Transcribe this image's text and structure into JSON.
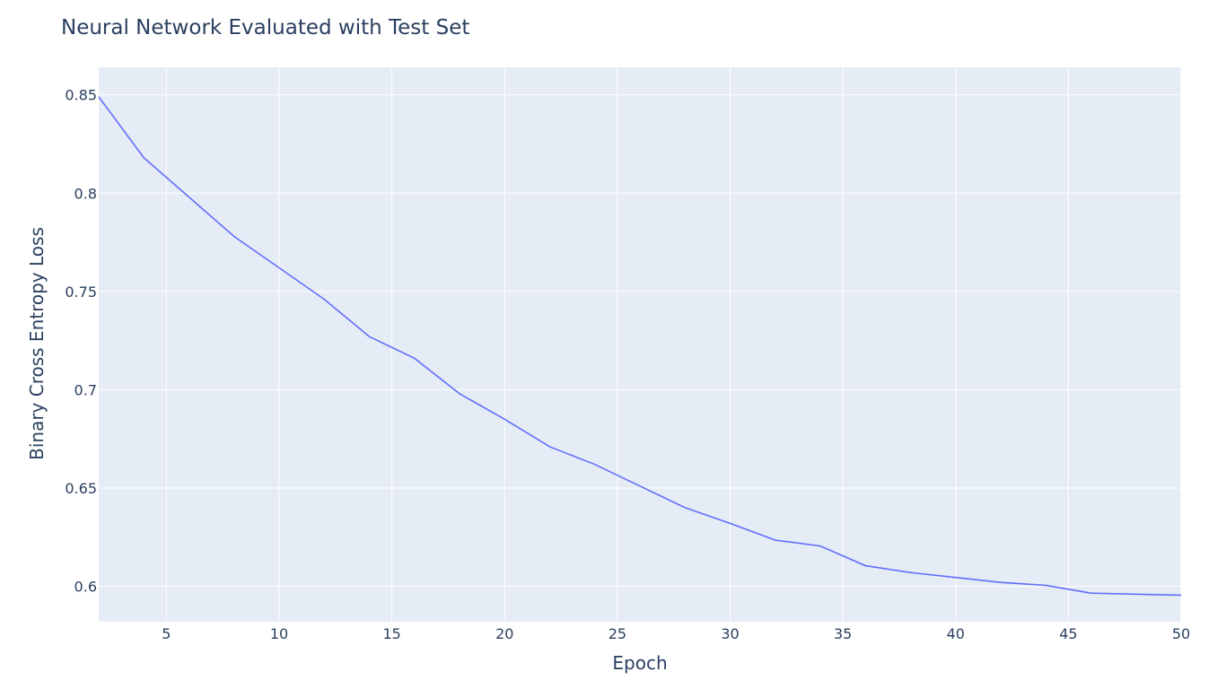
{
  "chart_data": {
    "type": "line",
    "title": "Neural Network Evaluated with Test Set",
    "xlabel": "Epoch",
    "ylabel": "Binary Cross Entropy Loss",
    "xlim": [
      2,
      50
    ],
    "ylim": [
      0.582,
      0.864
    ],
    "xticks": [
      5,
      10,
      15,
      20,
      25,
      30,
      35,
      40,
      45,
      50
    ],
    "yticks": [
      0.6,
      0.65,
      0.7,
      0.75,
      0.8,
      0.85
    ],
    "ytick_labels": [
      "0.6",
      "0.65",
      "0.7",
      "0.75",
      "0.8",
      "0.85"
    ],
    "grid": true,
    "colors": {
      "line": "#636efa",
      "plot_bg": "#e5ecf6",
      "grid": "#ffffff",
      "text": "#2a3f5f"
    },
    "series": [
      {
        "x": [
          2,
          4,
          6,
          8,
          10,
          12,
          14,
          16,
          18,
          20,
          22,
          24,
          26,
          28,
          30,
          32,
          34,
          36,
          38,
          40,
          42,
          44,
          46,
          48,
          50
        ],
        "values": [
          0.849,
          0.818,
          0.798,
          0.778,
          0.762,
          0.746,
          0.727,
          0.716,
          0.698,
          0.685,
          0.671,
          0.662,
          0.651,
          0.64,
          0.632,
          0.6235,
          0.6205,
          0.6105,
          0.607,
          0.6045,
          0.602,
          0.6005,
          0.5965,
          0.596,
          0.5955
        ]
      }
    ]
  }
}
